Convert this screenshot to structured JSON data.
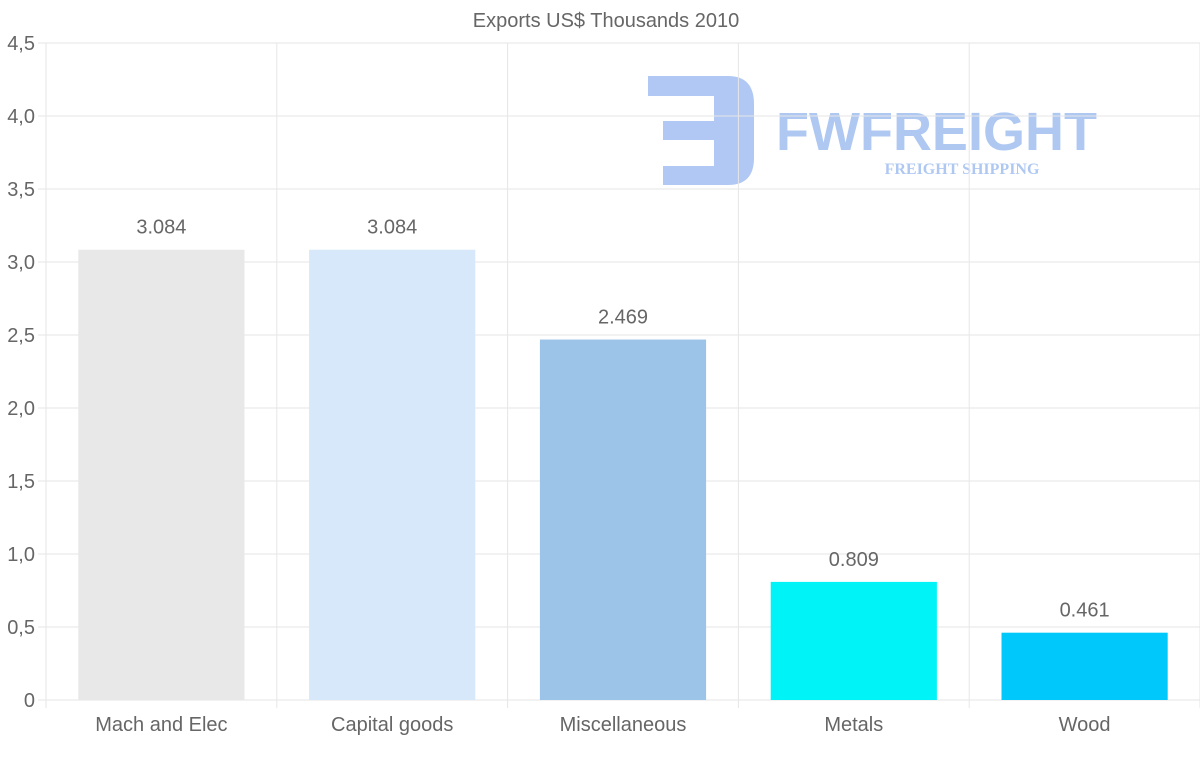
{
  "chart_data": {
    "type": "bar",
    "title": "Exports US$ Thousands 2010",
    "xlabel": "",
    "ylabel": "",
    "categories": [
      "Mach and Elec",
      "Capital goods",
      "Miscellaneous",
      "Metals",
      "Wood"
    ],
    "values": [
      3.084,
      3.084,
      2.469,
      0.809,
      0.461
    ],
    "value_labels": [
      "3.084",
      "3.084",
      "2.469",
      "0.809",
      "0.461"
    ],
    "bar_colors": [
      "#e8e8e8",
      "#d7e8fa",
      "#9cc4e8",
      "#00f3f7",
      "#00c8fb"
    ],
    "ylim": [
      0,
      4.5
    ],
    "y_ticks": [
      {
        "value": 0,
        "label": "0"
      },
      {
        "value": 0.5,
        "label": "0,5"
      },
      {
        "value": 1.0,
        "label": "1,0"
      },
      {
        "value": 1.5,
        "label": "1,5"
      },
      {
        "value": 2.0,
        "label": "2,0"
      },
      {
        "value": 2.5,
        "label": "2,5"
      },
      {
        "value": 3.0,
        "label": "3,0"
      },
      {
        "value": 3.5,
        "label": "3,5"
      },
      {
        "value": 4.0,
        "label": "4,0"
      },
      {
        "value": 4.5,
        "label": "4,5"
      }
    ],
    "grid": true,
    "legend": "none"
  },
  "watermark": {
    "brand": "FWFREIGHT",
    "tagline": "FREIGHT SHIPPING",
    "color": "#4f86e4"
  },
  "colors": {
    "grid": "#e6e6e6",
    "text": "#666666",
    "title": "#666666"
  }
}
